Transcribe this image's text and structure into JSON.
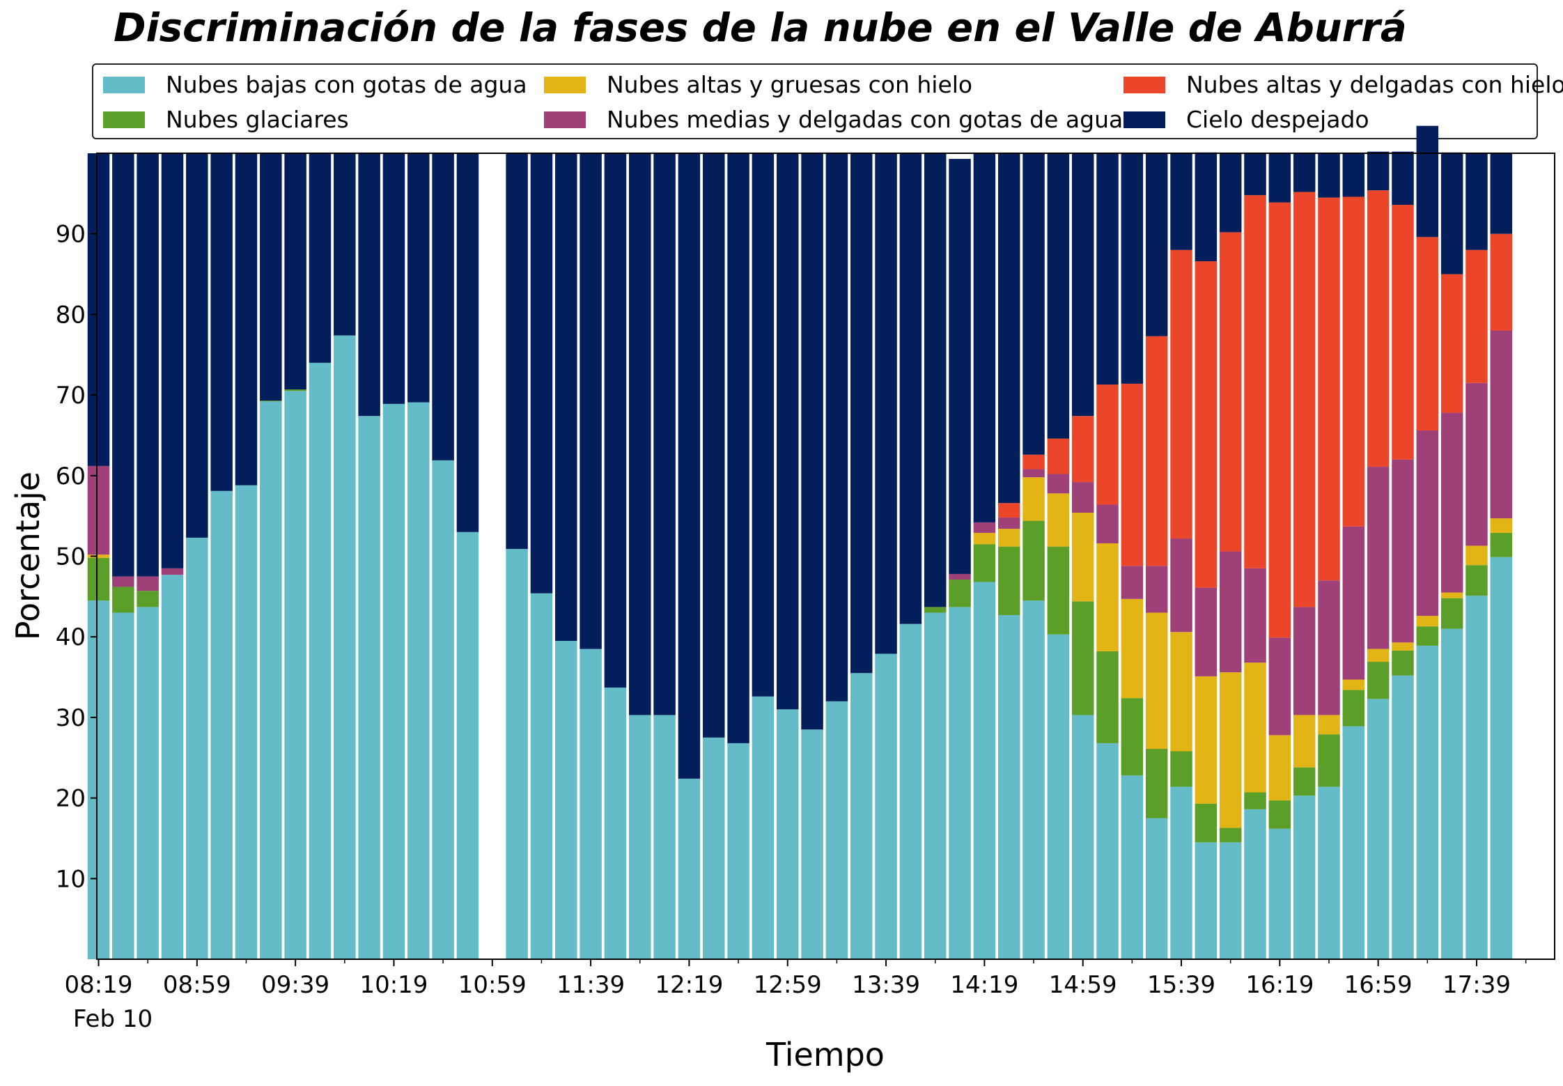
{
  "chart_data": {
    "type": "bar",
    "stacked": true,
    "title": "Discriminación de la fases de la nube en el Valle de Aburrá",
    "xlabel": "Tiempo",
    "ylabel": "Porcentaje",
    "date_label": "Feb 10",
    "ylim": [
      0,
      100
    ],
    "yticks": [
      10,
      20,
      30,
      40,
      50,
      60,
      70,
      80,
      90
    ],
    "grid": false,
    "legend_position": "top",
    "x_tick_labels": [
      "08:19",
      "08:59",
      "09:39",
      "10:19",
      "10:59",
      "11:39",
      "12:19",
      "12:59",
      "13:39",
      "14:19",
      "14:59",
      "15:39",
      "16:19",
      "16:59",
      "17:39"
    ],
    "x_tick_times": [
      499,
      539,
      579,
      619,
      659,
      699,
      739,
      779,
      819,
      859,
      899,
      939,
      979,
      1019,
      1059
    ],
    "x_start": "08:19",
    "x_interval_minutes": 10,
    "missing_times": [
      "10:59"
    ],
    "series": [
      {
        "name": "Nubes bajas con gotas de agua",
        "color": "#63bcc8",
        "values": [
          44.5,
          43,
          43.7,
          47.7,
          52.3,
          58.1,
          58.8,
          69.2,
          70.5,
          74,
          77.4,
          67.4,
          68.9,
          69.1,
          61.9,
          53,
          null,
          50.9,
          45.4,
          39.5,
          38.5,
          33.7,
          30.3,
          30.3,
          22.4,
          27.5,
          26.8,
          32.6,
          31,
          28.5,
          32,
          35.5,
          37.9,
          41.6,
          43,
          43.7,
          46.8,
          42.7,
          44.5,
          40.3,
          30.3,
          26.8,
          22.8,
          17.5,
          21.4,
          14.5,
          14.5,
          18.6,
          16.2,
          20.3,
          21.4,
          28.9,
          32.3,
          35.2,
          38.9,
          41,
          45.1,
          49.9
        ]
      },
      {
        "name": "Nubes glaciares",
        "color": "#5b9e28",
        "values": [
          5.3,
          3.2,
          2,
          0,
          0,
          0,
          0,
          0.1,
          0.2,
          0,
          0,
          0,
          0,
          0,
          0,
          0,
          null,
          0,
          0,
          0,
          0,
          0,
          0,
          0,
          0,
          0,
          0,
          0,
          0,
          0,
          0,
          0,
          0,
          0,
          0.7,
          3.4,
          4.7,
          8.5,
          9.9,
          10.9,
          14.1,
          11.4,
          9.6,
          8.6,
          4.4,
          4.8,
          1.8,
          2.1,
          3.5,
          3.5,
          6.5,
          4.5,
          4.6,
          3.1,
          2.4,
          3.8,
          3.8,
          3
        ]
      },
      {
        "name": "Nubes altas y gruesas con hielo",
        "color": "#e3b416",
        "values": [
          0.4,
          0,
          0,
          0,
          0,
          0,
          0,
          0,
          0,
          0,
          0,
          0,
          0,
          0,
          0,
          0,
          null,
          0,
          0,
          0,
          0,
          0,
          0,
          0,
          0,
          0,
          0,
          0,
          0,
          0,
          0,
          0,
          0,
          0,
          0,
          0,
          1.4,
          2.2,
          5.4,
          6.6,
          11,
          13.4,
          12.3,
          16.9,
          14.8,
          15.8,
          19.3,
          16.1,
          8.1,
          6.5,
          2.4,
          1.3,
          1.6,
          1,
          1.3,
          0.7,
          2.4,
          1.8
        ]
      },
      {
        "name": "Nubes medias y delgadas con gotas de agua",
        "color": "#9f4178",
        "values": [
          11,
          1.3,
          1.8,
          0.8,
          0,
          0,
          0,
          0,
          0,
          0,
          0,
          0,
          0,
          0,
          0,
          0,
          null,
          0,
          0,
          0,
          0,
          0,
          0,
          0,
          0,
          0,
          0,
          0,
          0,
          0,
          0,
          0,
          0,
          0,
          0,
          0.7,
          1.3,
          1.4,
          1,
          2.4,
          3.8,
          4.8,
          4.1,
          5.8,
          11.6,
          11,
          15,
          11.7,
          12.1,
          13.4,
          16.7,
          19,
          22.6,
          22.7,
          23,
          22.3,
          20.2,
          23.3
        ]
      },
      {
        "name": "Nubes altas y delgadas con hielo",
        "color": "#ec462a",
        "values": [
          0,
          0,
          0,
          0,
          0,
          0,
          0,
          0,
          0,
          0,
          0,
          0,
          0,
          0,
          0,
          0,
          null,
          0,
          0,
          0,
          0,
          0,
          0,
          0,
          0,
          0,
          0,
          0,
          0,
          0,
          0,
          0,
          0,
          0,
          0,
          0,
          0,
          1.8,
          1.8,
          4.4,
          8.2,
          14.9,
          22.6,
          28.5,
          35.8,
          40.5,
          39.6,
          46.3,
          54,
          51.5,
          47.5,
          40.9,
          34.3,
          31.6,
          24,
          17.2,
          16.5,
          12
        ]
      },
      {
        "name": "Cielo despejado",
        "color": "#031f5b",
        "values": [
          38.8,
          52.5,
          52.5,
          51.5,
          47.7,
          41.9,
          41.2,
          30.7,
          29.3,
          26,
          22.6,
          32.6,
          31.1,
          30.9,
          38.1,
          47,
          null,
          49.1,
          54.6,
          60.5,
          61.5,
          66.3,
          69.7,
          69.7,
          77.6,
          72.5,
          73.2,
          67.4,
          69,
          71.5,
          68,
          64.5,
          62.1,
          58.4,
          56.3,
          51.5,
          45.8,
          43.4,
          37.4,
          35.4,
          32.6,
          28.7,
          28.6,
          22.7,
          12,
          13.5,
          9.8,
          5.2,
          6.1,
          4.8,
          5.5,
          5.4,
          4.8,
          6.6,
          13.8,
          15.1,
          12,
          10
        ]
      }
    ]
  }
}
